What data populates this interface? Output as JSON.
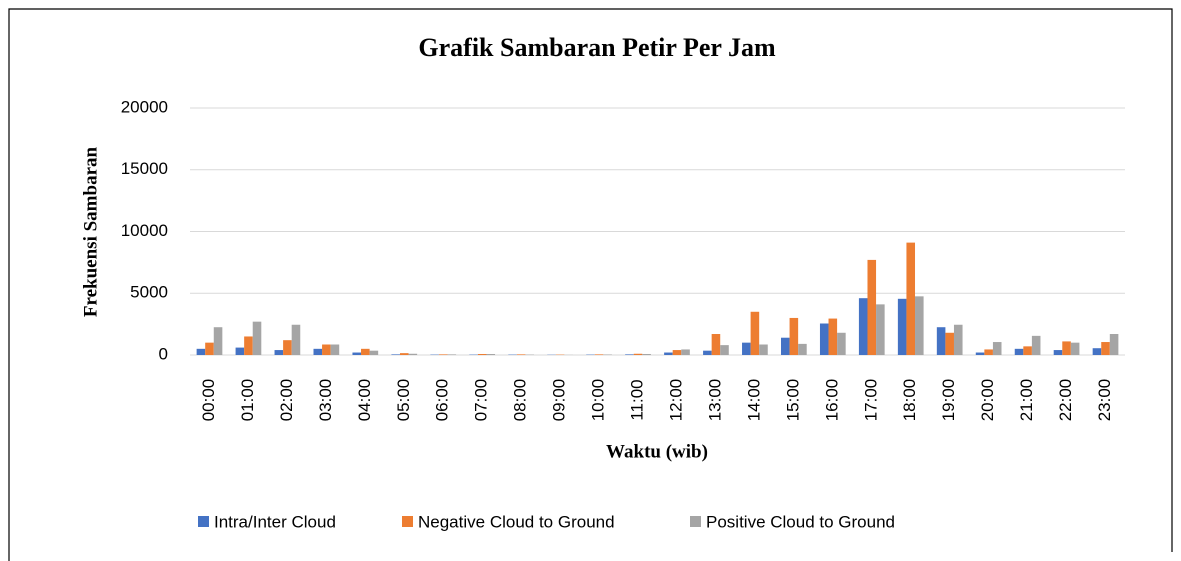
{
  "chart_data": {
    "type": "bar",
    "title": "Grafik Sambaran Petir Per Jam",
    "x_label": "Waktu (wib)",
    "y_label": "Frekuensi Sambaran",
    "categories": [
      "00:00",
      "01:00",
      "02:00",
      "03:00",
      "04:00",
      "05:00",
      "06:00",
      "07:00",
      "08:00",
      "09:00",
      "10:00",
      "11:00",
      "12:00",
      "13:00",
      "14:00",
      "15:00",
      "16:00",
      "17:00",
      "18:00",
      "19:00",
      "20:00",
      "21:00",
      "22:00",
      "23:00"
    ],
    "series": [
      {
        "name": "Intra/Inter Cloud",
        "color": "#4472c4",
        "values": [
          500,
          600,
          400,
          500,
          200,
          50,
          30,
          30,
          30,
          20,
          30,
          50,
          200,
          350,
          1000,
          1400,
          2550,
          4600,
          4550,
          2250,
          200,
          500,
          400,
          550
        ]
      },
      {
        "name": "Negative Cloud to Ground",
        "color": "#ed7d31",
        "values": [
          1000,
          1500,
          1200,
          850,
          500,
          150,
          50,
          80,
          50,
          30,
          50,
          100,
          400,
          1700,
          3500,
          3000,
          2950,
          7700,
          9100,
          1800,
          450,
          700,
          1100,
          1050
        ]
      },
      {
        "name": "Positive Cloud to Ground",
        "color": "#a5a5a5",
        "values": [
          2250,
          2700,
          2450,
          850,
          350,
          100,
          50,
          80,
          30,
          10,
          40,
          80,
          450,
          800,
          850,
          900,
          1800,
          4100,
          4750,
          2450,
          1050,
          1550,
          1000,
          1700
        ]
      }
    ],
    "ylim": [
      0,
      20000
    ],
    "yticks": [
      0,
      5000,
      10000,
      15000,
      20000
    ],
    "grid": true,
    "legend": "bottom"
  }
}
